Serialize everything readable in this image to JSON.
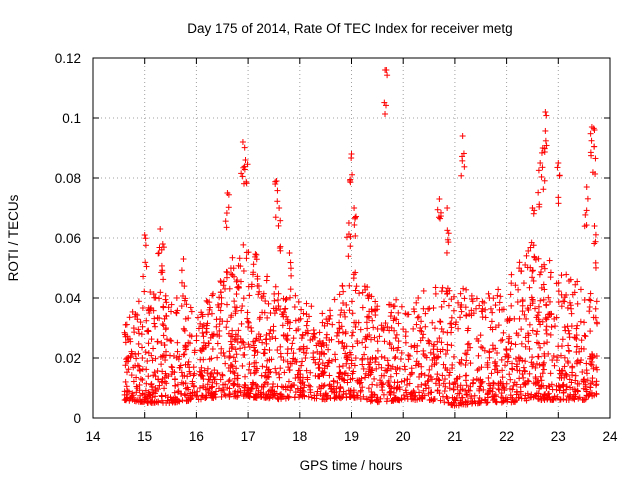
{
  "chart_data": {
    "type": "scatter",
    "title": "Day 175 of 2014, Rate Of TEC Index for receiver metg",
    "xlabel": "GPS time / hours",
    "ylabel": "ROTI / TECUs",
    "xlim": [
      14,
      24
    ],
    "ylim": [
      0,
      0.12
    ],
    "x_ticks": [
      "14",
      "15",
      "16",
      "17",
      "18",
      "19",
      "20",
      "21",
      "22",
      "23",
      "24"
    ],
    "y_ticks": [
      "0",
      "0.02",
      "0.04",
      "0.06",
      "0.08",
      "0.1",
      "0.12"
    ],
    "grid": true,
    "marker": "+",
    "series_color": "#ff0000",
    "data_span": [
      14.6,
      23.75
    ],
    "peaks": [
      {
        "x": 15.0,
        "y": 0.061
      },
      {
        "x": 15.3,
        "y": 0.063
      },
      {
        "x": 15.35,
        "y": 0.058
      },
      {
        "x": 15.75,
        "y": 0.053
      },
      {
        "x": 16.6,
        "y": 0.075
      },
      {
        "x": 16.9,
        "y": 0.092
      },
      {
        "x": 16.95,
        "y": 0.086
      },
      {
        "x": 17.55,
        "y": 0.079
      },
      {
        "x": 17.6,
        "y": 0.07
      },
      {
        "x": 17.8,
        "y": 0.055
      },
      {
        "x": 19.0,
        "y": 0.088
      },
      {
        "x": 19.05,
        "y": 0.07
      },
      {
        "x": 18.95,
        "y": 0.065
      },
      {
        "x": 19.65,
        "y": 0.116
      },
      {
        "x": 20.7,
        "y": 0.073
      },
      {
        "x": 20.85,
        "y": 0.07
      },
      {
        "x": 21.15,
        "y": 0.094
      },
      {
        "x": 22.5,
        "y": 0.07
      },
      {
        "x": 22.7,
        "y": 0.09
      },
      {
        "x": 22.75,
        "y": 0.102
      },
      {
        "x": 22.65,
        "y": 0.085
      },
      {
        "x": 23.0,
        "y": 0.085
      },
      {
        "x": 23.55,
        "y": 0.077
      },
      {
        "x": 23.65,
        "y": 0.097
      },
      {
        "x": 23.7,
        "y": 0.096
      },
      {
        "x": 23.7,
        "y": 0.064
      }
    ],
    "envelope": {
      "hours": [
        14.6,
        15.0,
        15.5,
        16.0,
        16.5,
        17.0,
        17.5,
        18.0,
        18.5,
        19.0,
        19.5,
        20.0,
        20.5,
        21.0,
        21.5,
        22.0,
        22.5,
        23.0,
        23.5,
        23.75
      ],
      "typical_max": [
        0.03,
        0.045,
        0.045,
        0.035,
        0.05,
        0.06,
        0.045,
        0.04,
        0.035,
        0.05,
        0.04,
        0.04,
        0.045,
        0.045,
        0.04,
        0.045,
        0.06,
        0.05,
        0.045,
        0.04
      ],
      "typical_min": [
        0.006,
        0.005,
        0.005,
        0.006,
        0.007,
        0.007,
        0.006,
        0.007,
        0.006,
        0.007,
        0.005,
        0.006,
        0.006,
        0.004,
        0.005,
        0.005,
        0.006,
        0.006,
        0.006,
        0.008
      ]
    }
  }
}
